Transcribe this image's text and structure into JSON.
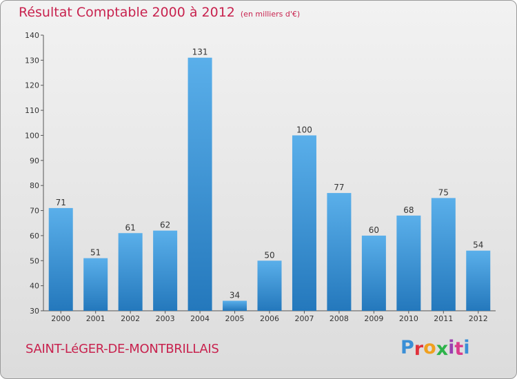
{
  "header": {
    "title": "Résultat Comptable 2000 à 2012",
    "unit": "(en milliers d'€)"
  },
  "footer": {
    "commune": "SAINT-LéGER-DE-MONTBRILLAIS",
    "brand": "Proxiti",
    "brand_colors": [
      "#3a8fd6",
      "#e0323c",
      "#f0a020",
      "#2db34a",
      "#9b3fb0",
      "#d93b8c",
      "#3a8fd6"
    ]
  },
  "chart_data": {
    "type": "bar",
    "title": "Résultat Comptable 2000 à 2012",
    "categories": [
      "2000",
      "2001",
      "2002",
      "2003",
      "2004",
      "2005",
      "2006",
      "2007",
      "2008",
      "2009",
      "2010",
      "2011",
      "2012"
    ],
    "values": [
      71,
      51,
      61,
      62,
      131,
      34,
      50,
      100,
      77,
      60,
      68,
      75,
      54
    ],
    "ylim": [
      30,
      140
    ],
    "yticks": [
      30,
      40,
      50,
      60,
      70,
      80,
      90,
      100,
      110,
      120,
      130,
      140
    ],
    "xlabel": "",
    "ylabel": "",
    "grid": false,
    "bar_color_top": "#5aafea",
    "bar_color_bottom": "#2478bc"
  }
}
